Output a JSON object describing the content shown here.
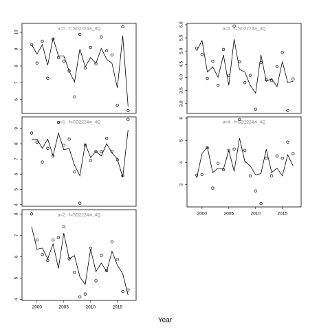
{
  "xlabel": "Year",
  "chart_data": [
    {
      "type": "line",
      "title": "a=0  :  f=SD2224w_4Q",
      "x": [
        1999,
        2000,
        2001,
        2002,
        2003,
        2004,
        2005,
        2006,
        2007,
        2008,
        2009,
        2010,
        2011,
        2012,
        2013,
        2014,
        2015,
        2016,
        2017
      ],
      "series": [
        {
          "color": "#000000",
          "marker": "circle",
          "values": [
            9.27,
            8.17,
            9.47,
            7.27,
            9.6,
            8.49,
            8.29,
            7.7,
            6.16,
            9.88,
            7.88,
            9.1,
            8.12,
            9.73,
            8.9,
            8.65,
            5.67,
            10.33,
            5.35
          ]
        },
        {
          "color": "#000000",
          "marker": "none",
          "values": [
            9.27,
            8.7,
            9.27,
            8.05,
            9.65,
            8.6,
            8.6,
            7.7,
            7.05,
            9.0,
            7.95,
            8.5,
            8.15,
            9.05,
            8.4,
            8.15,
            6.7,
            9.8,
            5.6
          ]
        }
      ],
      "xlim": [
        1997.2,
        2018.5
      ],
      "ylim": [
        5.18,
        10.53
      ],
      "yticks": [
        6,
        7,
        8,
        9,
        10
      ]
    },
    {
      "type": "line",
      "title": "a=1  :  f=SD2224w_4Q",
      "x": [
        1999,
        2000,
        2001,
        2002,
        2003,
        2004,
        2005,
        2006,
        2007,
        2008,
        2009,
        2010,
        2011,
        2012,
        2013,
        2014,
        2015,
        2016,
        2017
      ],
      "series": [
        {
          "color": "#000000",
          "marker": "circle",
          "values": [
            8.7,
            8.1,
            6.8,
            7.7,
            7.2,
            9.4,
            7.9,
            8.3,
            6.15,
            4.1,
            7.9,
            6.9,
            7.5,
            7.5,
            8.35,
            7.5,
            6.95,
            5.9,
            9.6
          ]
        },
        {
          "color": "#000000",
          "marker": "none",
          "values": [
            8.3,
            8.3,
            7.7,
            8.3,
            7.2,
            8.7,
            7.6,
            7.7,
            6.6,
            5.9,
            8.0,
            7.1,
            7.5,
            7.2,
            8.0,
            7.4,
            7.0,
            5.8,
            8.9
          ]
        }
      ],
      "xlim": [
        1997.2,
        2018.5
      ],
      "ylim": [
        3.9,
        9.76
      ],
      "yticks": [
        4,
        5,
        6,
        7,
        8,
        9
      ]
    },
    {
      "type": "line",
      "title": "a=2  :  f=SD2224w_4Q",
      "x": [
        1999,
        2000,
        2001,
        2002,
        2003,
        2004,
        2005,
        2006,
        2007,
        2008,
        2009,
        2010,
        2011,
        2012,
        2013,
        2014,
        2015,
        2016,
        2017
      ],
      "series": [
        {
          "color": "#000000",
          "marker": "circle",
          "values": [
            8.0,
            6.78,
            6.1,
            5.82,
            6.78,
            6.9,
            7.4,
            5.9,
            5.27,
            4.12,
            4.25,
            6.4,
            4.87,
            6.05,
            5.35,
            6.7,
            5.87,
            4.37,
            4.44
          ]
        },
        {
          "color": "#000000",
          "marker": "none",
          "values": [
            7.4,
            6.35,
            6.4,
            5.9,
            6.6,
            5.45,
            7.1,
            5.9,
            6.05,
            5.05,
            4.7,
            6.35,
            5.3,
            5.7,
            5.3,
            6.25,
            5.6,
            5.2,
            4.2
          ]
        }
      ],
      "xlim": [
        1997.2,
        2018.5
      ],
      "ylim": [
        3.95,
        8.2
      ],
      "yticks": [
        4,
        5,
        6,
        7,
        8
      ],
      "xticks": [
        2000,
        2005,
        2010,
        2015
      ]
    },
    {
      "type": "line",
      "title": "a=3  :  f=SD2224w_4Q",
      "x": [
        1999,
        2000,
        2001,
        2002,
        2003,
        2004,
        2005,
        2006,
        2007,
        2008,
        2009,
        2010,
        2011,
        2012,
        2013,
        2014,
        2015,
        2016,
        2017
      ],
      "series": [
        {
          "color": "#000000",
          "marker": "circle",
          "values": [
            5.11,
            4.87,
            3.96,
            4.61,
            3.7,
            5.06,
            4.07,
            5.95,
            4.59,
            3.8,
            4.07,
            2.79,
            4.56,
            3.91,
            3.88,
            4.41,
            4.95,
            2.74,
            3.94
          ]
        },
        {
          "color": "#000000",
          "marker": "none",
          "values": [
            5.0,
            5.4,
            4.2,
            4.4,
            4.0,
            4.85,
            3.7,
            5.45,
            4.3,
            4.2,
            3.7,
            3.4,
            4.85,
            3.85,
            3.95,
            3.65,
            4.6,
            3.8,
            3.85
          ]
        }
      ],
      "xlim": [
        1997.2,
        2018.5
      ],
      "ylim": [
        2.63,
        6.05
      ],
      "yticks": [
        {
          "value": 3,
          "label": "3.0"
        },
        3.5,
        {
          "value": 4,
          "label": "4.0"
        },
        4.5,
        {
          "value": 5,
          "label": "5.0"
        },
        5.5,
        {
          "value": 6,
          "label": "6.0"
        }
      ]
    },
    {
      "type": "line",
      "title": "a=4  :  f=SD2224w_4Q",
      "x": [
        1999,
        2000,
        2001,
        2002,
        2003,
        2004,
        2005,
        2006,
        2007,
        2008,
        2009,
        2010,
        2011,
        2012,
        2013,
        2014,
        2015,
        2016,
        2017
      ],
      "series": [
        {
          "color": "#000000",
          "marker": "circle",
          "values": [
            3.43,
            3.46,
            4.67,
            2.85,
            3.96,
            3.68,
            4.55,
            4.61,
            5.94,
            4.55,
            3.4,
            2.72,
            2.15,
            4.2,
            3.4,
            4.3,
            4.2,
            4.92,
            4.4
          ]
        },
        {
          "color": "#000000",
          "marker": "none",
          "values": [
            3.3,
            4.4,
            4.7,
            3.55,
            3.75,
            3.7,
            4.55,
            3.6,
            5.1,
            4.05,
            3.85,
            3.45,
            3.5,
            4.6,
            3.55,
            3.75,
            3.4,
            4.35,
            3.85
          ]
        }
      ],
      "xlim": [
        1997.2,
        2018.5
      ],
      "ylim": [
        2.0,
        6.06
      ],
      "yticks": [
        3,
        4,
        5,
        6
      ],
      "xticks": [
        2000,
        2005,
        2010,
        2015
      ]
    }
  ]
}
